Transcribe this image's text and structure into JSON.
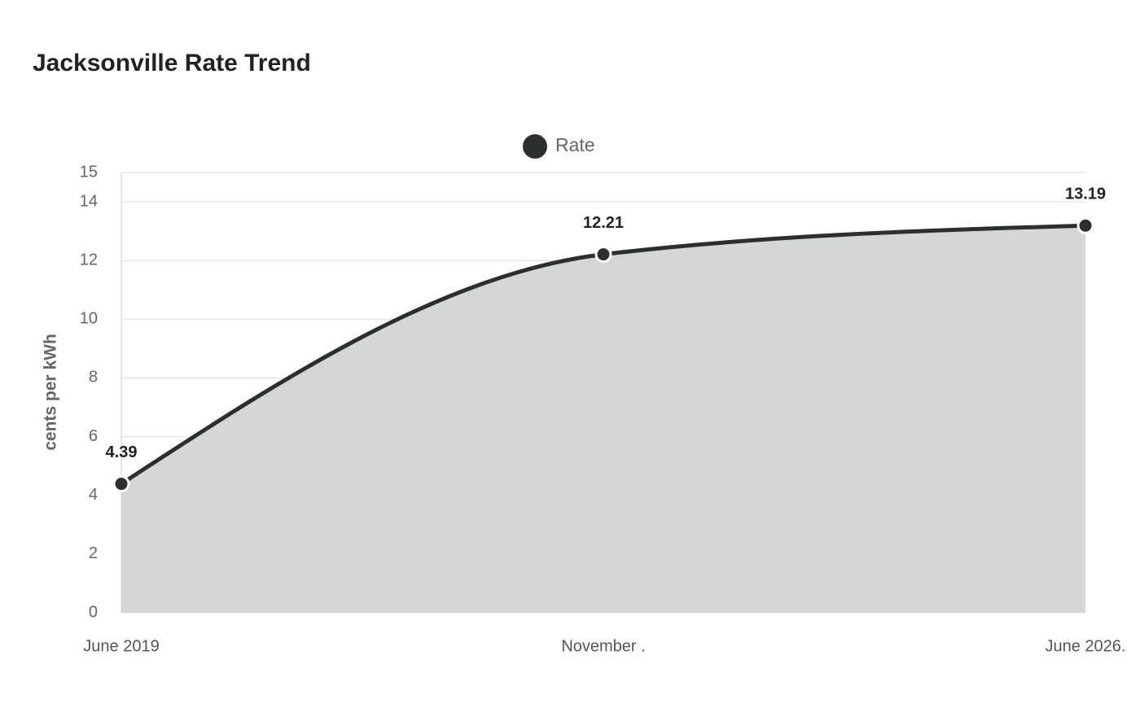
{
  "chart_data": {
    "type": "area",
    "title": "Jacksonville Rate Trend",
    "y_label": "cents per kWh",
    "categories": [
      "June 2019",
      "November .",
      "June 2026."
    ],
    "series": [
      {
        "name": "Rate",
        "color": "#2b2f2f",
        "fill": "#d5d6d6",
        "values": [
          4.39,
          12.21,
          13.19
        ]
      }
    ],
    "ylim": [
      0,
      15
    ],
    "yticks": [
      0,
      2,
      4,
      6,
      8,
      10,
      12,
      14,
      15
    ],
    "grid": true,
    "legend": "top"
  }
}
